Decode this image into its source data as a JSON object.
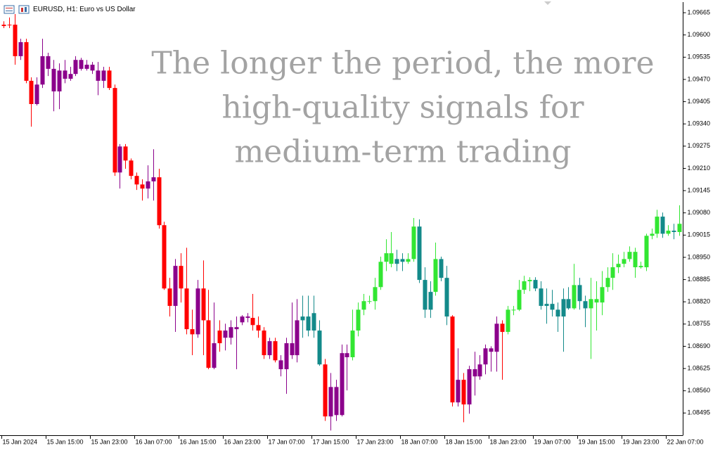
{
  "chart_data": {
    "type": "candlestick",
    "title": "EURUSD, H1:  Euro vs US Dollar",
    "annotation": [
      "The longer the period, the more",
      "high-quality signals for",
      "medium-term trading"
    ],
    "ylim": [
      1.0843,
      1.09696
    ],
    "yticks": [
      1.09665,
      {
        "value": 1.096,
        "label": "1.09600"
      },
      1.09535,
      {
        "value": 1.0947,
        "label": "1.09470"
      },
      1.09405,
      {
        "value": 1.0934,
        "label": "1.09340"
      },
      1.09275,
      {
        "value": 1.0921,
        "label": "1.09210"
      },
      1.09145,
      {
        "value": 1.0908,
        "label": "1.09080"
      },
      1.09015,
      {
        "value": 1.0895,
        "label": "1.08950"
      },
      1.08885,
      {
        "value": 1.0882,
        "label": "1.08820"
      },
      1.08755,
      {
        "value": 1.0869,
        "label": "1.08690"
      },
      1.08625,
      {
        "value": 1.0856,
        "label": "1.08560"
      },
      1.08495
    ],
    "categories": [
      "15 Jan 2024",
      null,
      null,
      null,
      null,
      null,
      null,
      null,
      "15 Jan 15:00",
      null,
      null,
      null,
      null,
      null,
      null,
      null,
      "15 Jan 23:00",
      null,
      null,
      null,
      null,
      null,
      null,
      null,
      "16 Jan 07:00",
      null,
      null,
      null,
      null,
      null,
      null,
      null,
      "16 Jan 15:00",
      null,
      null,
      null,
      null,
      null,
      null,
      null,
      "16 Jan 23:00",
      null,
      null,
      null,
      null,
      null,
      null,
      null,
      "17 Jan 07:00",
      null,
      null,
      null,
      null,
      null,
      null,
      null,
      "17 Jan 15:00",
      null,
      null,
      null,
      null,
      null,
      null,
      null,
      "17 Jan 23:00",
      null,
      null,
      null,
      null,
      null,
      null,
      null,
      "18 Jan 07:00",
      null,
      null,
      null,
      null,
      null,
      null,
      null,
      "18 Jan 15:00",
      null,
      null,
      null,
      null,
      null,
      null,
      null,
      "18 Jan 23:00",
      null,
      null,
      null,
      null,
      null,
      null,
      null,
      "19 Jan 07:00",
      null,
      null,
      null,
      null,
      null,
      null,
      null,
      "19 Jan 15:00",
      null,
      null,
      null,
      null,
      null,
      null,
      null,
      "19 Jan 23:00",
      null,
      null,
      null,
      null,
      null,
      null,
      null,
      "22 Jan 07:00",
      null,
      null
    ],
    "ohlc": [
      [
        1.0963,
        1.0964,
        1.0962,
        1.09626
      ],
      [
        1.0963,
        1.09651,
        1.0962,
        1.0963
      ],
      [
        1.0963,
        1.09661,
        1.09513,
        1.09538
      ],
      [
        1.09538,
        1.09589,
        1.09527,
        1.09579
      ],
      [
        1.09579,
        1.09589,
        1.09459,
        1.09466
      ],
      [
        1.09466,
        1.09476,
        1.09332,
        1.09398
      ],
      [
        1.09398,
        1.09476,
        1.09394,
        1.09455
      ],
      [
        1.09455,
        1.09589,
        1.09445,
        1.09538
      ],
      [
        1.09538,
        1.09548,
        1.0948,
        1.09501
      ],
      [
        1.09501,
        1.09527,
        1.09377,
        1.09435
      ],
      [
        1.09435,
        1.09517,
        1.09383,
        1.09496
      ],
      [
        1.09496,
        1.09527,
        1.09459,
        1.09472
      ],
      [
        1.09472,
        1.09507,
        1.09466,
        1.09486
      ],
      [
        1.09486,
        1.09538,
        1.0948,
        1.09527
      ],
      [
        1.09527,
        1.09533,
        1.09496,
        1.09501
      ],
      [
        1.09501,
        1.09527,
        1.09496,
        1.09513
      ],
      [
        1.09513,
        1.09521,
        1.09486,
        1.09496
      ],
      [
        1.09496,
        1.09521,
        1.09424,
        1.09466
      ],
      [
        1.09466,
        1.09507,
        1.09445,
        1.09496
      ],
      [
        1.09496,
        1.09507,
        1.09439,
        1.09445
      ],
      [
        1.09445,
        1.09455,
        1.09188,
        1.09198
      ],
      [
        1.09198,
        1.09281,
        1.09151,
        1.09274
      ],
      [
        1.09274,
        1.09281,
        1.09209,
        1.09233
      ],
      [
        1.09233,
        1.09239,
        1.09178,
        1.09188
      ],
      [
        1.09188,
        1.09198,
        1.09147,
        1.09163
      ],
      [
        1.09163,
        1.09178,
        1.09116,
        1.09151
      ],
      [
        1.09151,
        1.09219,
        1.09122,
        1.09172
      ],
      [
        1.09172,
        1.09266,
        1.09116,
        1.09184
      ],
      [
        1.09184,
        1.09209,
        1.09034,
        1.09044
      ],
      [
        1.09044,
        1.09054,
        1.08855,
        1.08859
      ],
      [
        1.08859,
        1.0889,
        1.08777,
        1.08808
      ],
      [
        1.08808,
        1.08945,
        1.08732,
        1.08925
      ],
      [
        1.08925,
        1.08962,
        1.08818,
        1.08859
      ],
      [
        1.08859,
        1.08978,
        1.08725,
        1.0874
      ],
      [
        1.0874,
        1.08797,
        1.08664,
        1.08725
      ],
      [
        1.08725,
        1.08884,
        1.08715,
        1.08859
      ],
      [
        1.08859,
        1.08941,
        1.08664,
        1.08766
      ],
      [
        1.08766,
        1.08855,
        1.08623,
        1.08627
      ],
      [
        1.08627,
        1.08818,
        1.08623,
        1.08699
      ],
      [
        1.08699,
        1.08766,
        1.08674,
        1.08736
      ],
      [
        1.08736,
        1.08756,
        1.08678,
        1.08715
      ],
      [
        1.08715,
        1.08766,
        1.08695,
        1.08746
      ],
      [
        1.08746,
        1.08777,
        1.08623,
        1.0874
      ],
      [
        1.0876,
        1.08781,
        1.08752,
        1.08777
      ],
      [
        1.08777,
        1.08787,
        1.0876,
        1.08773
      ],
      [
        1.08773,
        1.08843,
        1.08736,
        1.08752
      ],
      [
        1.08752,
        1.08777,
        1.08715,
        1.08736
      ],
      [
        1.08736,
        1.08746,
        1.08653,
        1.08664
      ],
      [
        1.08664,
        1.08715,
        1.08653,
        1.08705
      ],
      [
        1.08705,
        1.08715,
        1.08643,
        1.08649
      ],
      [
        1.08649,
        1.08664,
        1.08602,
        1.08623
      ],
      [
        1.08623,
        1.08715,
        1.08551,
        1.08699
      ],
      [
        1.08699,
        1.08818,
        1.08653,
        1.08664
      ],
      [
        1.08664,
        1.08828,
        1.08643,
        1.08766
      ],
      [
        1.08766,
        1.08838,
        1.08715,
        1.08777
      ],
      [
        1.08777,
        1.08838,
        1.08719,
        1.08736
      ],
      [
        1.08736,
        1.08838,
        1.08715,
        1.08787
      ],
      [
        1.08736,
        1.08766,
        1.08633,
        1.08637
      ],
      [
        1.08637,
        1.08653,
        1.08472,
        1.08485
      ],
      [
        1.08485,
        1.08612,
        1.08444,
        1.08571
      ],
      [
        1.08571,
        1.08592,
        1.08472,
        1.08489
      ],
      [
        1.08489,
        1.08695,
        1.08485,
        1.0867
      ],
      [
        1.0867,
        1.08695,
        1.08561,
        1.08658
      ],
      [
        1.08658,
        1.08797,
        1.08649,
        1.08736
      ],
      [
        1.08736,
        1.08818,
        1.08719,
        1.08797
      ],
      [
        1.08797,
        1.08843,
        1.08781,
        1.08822
      ],
      [
        1.08822,
        1.08838,
        1.08814,
        1.08822
      ],
      [
        1.08822,
        1.0889,
        1.08797,
        1.08863
      ],
      [
        1.08863,
        1.08952,
        1.08855,
        1.08937
      ],
      [
        1.08937,
        1.09003,
        1.0891,
        1.08962
      ],
      [
        1.08962,
        1.09024,
        1.08921,
        1.08931
      ],
      [
        1.08931,
        1.08972,
        1.0891,
        1.08945
      ],
      [
        1.08945,
        1.08962,
        1.0891,
        1.08937
      ],
      [
        1.08937,
        1.08962,
        1.08931,
        1.08945
      ],
      [
        1.08945,
        1.09065,
        1.08937,
        1.0904
      ],
      [
        1.0904,
        1.09061,
        1.08875,
        1.08884
      ],
      [
        1.08884,
        1.08921,
        1.08773,
        1.08797
      ],
      [
        1.08797,
        1.0888,
        1.08773,
        1.08849
      ],
      [
        1.08849,
        1.08993,
        1.08838,
        1.08945
      ],
      [
        1.08945,
        1.08952,
        1.0888,
        1.0889
      ],
      [
        1.0889,
        1.08925,
        1.08752,
        1.08777
      ],
      [
        1.08777,
        1.08781,
        1.08514,
        1.08526
      ],
      [
        1.08526,
        1.08684,
        1.08514,
        1.08592
      ],
      [
        1.08592,
        1.08612,
        1.08468,
        1.0852
      ],
      [
        1.0852,
        1.08633,
        1.08493,
        1.08623
      ],
      [
        1.08623,
        1.08674,
        1.08546,
        1.08602
      ],
      [
        1.08602,
        1.08664,
        1.08592,
        1.08637
      ],
      [
        1.08637,
        1.08695,
        1.08608,
        1.08684
      ],
      [
        1.08684,
        1.0869,
        1.08616,
        1.08674
      ],
      [
        1.08674,
        1.08777,
        1.08616,
        1.08756
      ],
      [
        1.08756,
        1.08766,
        1.08592,
        1.08732
      ],
      [
        1.08732,
        1.08808,
        1.08725,
        1.08797
      ],
      [
        1.08797,
        1.08808,
        1.08781,
        1.08797
      ],
      [
        1.08797,
        1.08884,
        1.08793,
        1.08855
      ],
      [
        1.08855,
        1.08896,
        1.08843,
        1.0888
      ],
      [
        1.0888,
        1.08892,
        1.08851,
        1.08884
      ],
      [
        1.08884,
        1.08892,
        1.08851,
        1.08859
      ],
      [
        1.08859,
        1.0888,
        1.08797,
        1.08808
      ],
      [
        1.08808,
        1.08859,
        1.08756,
        1.08814
      ],
      [
        1.08814,
        1.08855,
        1.08777,
        1.08797
      ],
      [
        1.08797,
        1.08818,
        1.08732,
        1.08777
      ],
      [
        1.08777,
        1.08859,
        1.08674,
        1.08828
      ],
      [
        1.08828,
        1.08863,
        1.08797,
        1.08801
      ],
      [
        1.08801,
        1.08931,
        1.08797,
        1.08869
      ],
      [
        1.08869,
        1.0889,
        1.08797,
        1.08822
      ],
      [
        1.08822,
        1.08838,
        1.08746,
        1.08801
      ],
      [
        1.08801,
        1.0889,
        1.08653,
        1.08828
      ],
      [
        1.08828,
        1.0888,
        1.08736,
        1.08818
      ],
      [
        1.08818,
        1.0891,
        1.08781,
        1.08863
      ],
      [
        1.08863,
        1.08921,
        1.08849,
        1.0889
      ],
      [
        1.0889,
        1.08962,
        1.08855,
        1.08921
      ],
      [
        1.08921,
        1.08958,
        1.08904,
        1.08931
      ],
      [
        1.08931,
        1.08966,
        1.08921,
        1.08945
      ],
      [
        1.08945,
        1.08982,
        1.08937,
        1.08966
      ],
      [
        1.08966,
        1.08978,
        1.0889,
        1.08921
      ],
      [
        1.08921,
        1.08937,
        1.08917,
        1.08925
      ],
      [
        1.08921,
        1.09019,
        1.0891,
        1.09013
      ],
      [
        1.09013,
        1.09034,
        1.09003,
        1.09019
      ],
      [
        1.09019,
        1.09089,
        1.09007,
        1.09069
      ],
      [
        1.09069,
        1.09081,
        1.09007,
        1.09019
      ],
      [
        1.09019,
        1.09044,
        1.09013,
        1.09028
      ],
      [
        1.09028,
        1.09048,
        1.09003,
        1.09024
      ],
      [
        1.09024,
        1.09102,
        1.09013,
        1.09048
      ]
    ],
    "colors": [
      "#ff0000",
      "#ff0000",
      "#ff0000",
      "#8b008b",
      "#ff0000",
      "#ff0000",
      "#8b008b",
      "#8b008b",
      "#8b008b",
      "#8b008b",
      "#8b008b",
      "#8b008b",
      "#8b008b",
      "#8b008b",
      "#8b008b",
      "#8b008b",
      "#8b008b",
      "#8b008b",
      "#8b008b",
      "#ff0000",
      "#ff0000",
      "#8b008b",
      "#ff0000",
      "#ff0000",
      "#ff0000",
      "#ff0000",
      "#8b008b",
      "#8b008b",
      "#ff0000",
      "#ff0000",
      "#ff0000",
      "#8b008b",
      "#ff0000",
      "#ff0000",
      "#ff0000",
      "#8b008b",
      "#ff0000",
      "#ff0000",
      "#8b008b",
      "#ff0000",
      "#8b008b",
      "#8b008b",
      "#8b008b",
      "#8b008b",
      "#8b008b",
      "#ff0000",
      "#ff0000",
      "#ff0000",
      "#8b008b",
      "#ff0000",
      "#8b008b",
      "#8b008b",
      "#8b008b",
      "#8b008b",
      "#138a8a",
      "#138a8a",
      "#138a8a",
      "#138a8a",
      "#ff0000",
      "#8b008b",
      "#8b008b",
      "#8b008b",
      "#8b008b",
      "#32e632",
      "#32e632",
      "#32e632",
      "#32e632",
      "#32e632",
      "#32e632",
      "#32e632",
      "#32e632",
      "#138a8a",
      "#138a8a",
      "#32e632",
      "#32e632",
      "#138a8a",
      "#138a8a",
      "#138a8a",
      "#32e632",
      "#138a8a",
      "#138a8a",
      "#ff0000",
      "#8b008b",
      "#ff0000",
      "#8b008b",
      "#8b008b",
      "#8b008b",
      "#8b008b",
      "#8b008b",
      "#8b008b",
      "#ff0000",
      "#32e632",
      "#32e632",
      "#32e632",
      "#32e632",
      "#32e632",
      "#138a8a",
      "#138a8a",
      "#138a8a",
      "#138a8a",
      "#138a8a",
      "#138a8a",
      "#138a8a",
      "#32e632",
      "#138a8a",
      "#138a8a",
      "#32e632",
      "#32e632",
      "#32e632",
      "#32e632",
      "#32e632",
      "#32e632",
      "#32e632",
      "#32e632",
      "#32e632",
      "#32e632",
      "#32e632",
      "#32e632",
      "#32e632",
      "#138a8a",
      "#32e632",
      "#138a8a",
      "#32e632"
    ]
  }
}
